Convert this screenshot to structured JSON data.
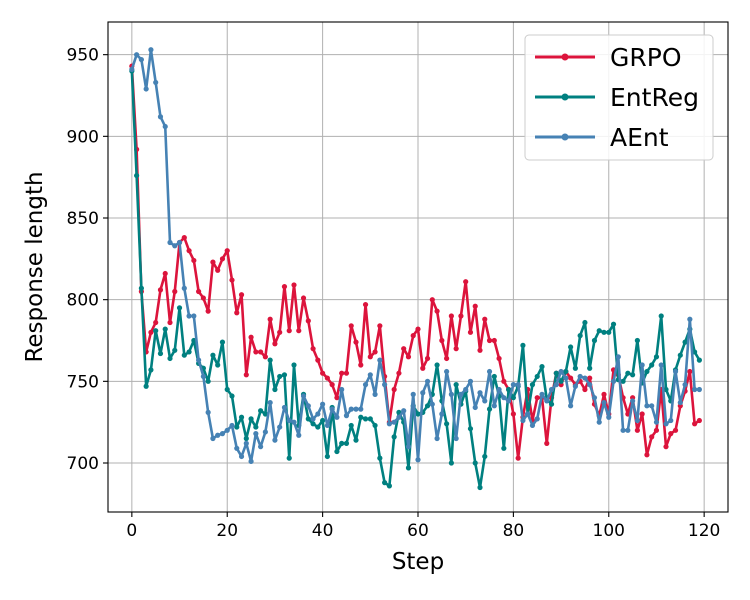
{
  "chart_data": {
    "type": "line",
    "xlabel": "Step",
    "ylabel": "Response length",
    "xlim": [
      -5,
      125
    ],
    "ylim": [
      670,
      970
    ],
    "xticks": [
      "0",
      "20",
      "40",
      "60",
      "80",
      "100",
      "120"
    ],
    "yticks": [
      "700",
      "750",
      "800",
      "850",
      "900",
      "950"
    ],
    "grid": true,
    "legend_position": "top-right",
    "x": [
      0,
      1,
      2,
      3,
      4,
      5,
      6,
      7,
      8,
      9,
      10,
      11,
      12,
      13,
      14,
      15,
      16,
      17,
      18,
      19,
      20,
      21,
      22,
      23,
      24,
      25,
      26,
      27,
      28,
      29,
      30,
      31,
      32,
      33,
      34,
      35,
      36,
      37,
      38,
      39,
      40,
      41,
      42,
      43,
      44,
      45,
      46,
      47,
      48,
      49,
      50,
      51,
      52,
      53,
      54,
      55,
      56,
      57,
      58,
      59,
      60,
      61,
      62,
      63,
      64,
      65,
      66,
      67,
      68,
      69,
      70,
      71,
      72,
      73,
      74,
      75,
      76,
      77,
      78,
      79,
      80,
      81,
      82,
      83,
      84,
      85,
      86,
      87,
      88,
      89,
      90,
      91,
      92,
      93,
      94,
      95,
      96,
      97,
      98,
      99,
      100,
      101,
      102,
      103,
      104,
      105,
      106,
      107,
      108,
      109,
      110,
      111,
      112,
      113,
      114,
      115,
      116,
      117,
      118,
      119
    ],
    "series": [
      {
        "name": "GRPO",
        "color": "#dc143c",
        "values": [
          943,
          892,
          805,
          768,
          780,
          786,
          806,
          816,
          786,
          805,
          835,
          838,
          830,
          824,
          805,
          801,
          793,
          823,
          818,
          825,
          830,
          812,
          792,
          803,
          754,
          777,
          768,
          768,
          765,
          788,
          773,
          780,
          808,
          781,
          809,
          781,
          801,
          787,
          770,
          763,
          755,
          752,
          748,
          740,
          755,
          755,
          784,
          774,
          760,
          797,
          765,
          768,
          784,
          753,
          725,
          745,
          755,
          770,
          765,
          778,
          782,
          758,
          764,
          800,
          793,
          775,
          764,
          790,
          770,
          790,
          811,
          780,
          796,
          769,
          788,
          775,
          775,
          764,
          750,
          745,
          730,
          703,
          728,
          745,
          726,
          740,
          740,
          712,
          740,
          755,
          748,
          756,
          752,
          748,
          750,
          745,
          752,
          736,
          729,
          742,
          730,
          757,
          754,
          740,
          730,
          740,
          720,
          730,
          705,
          716,
          720,
          745,
          710,
          718,
          720,
          735,
          744,
          756,
          724,
          726
        ]
      },
      {
        "name": "EntReg",
        "color": "#008080",
        "values": [
          940,
          876,
          807,
          747,
          757,
          781,
          767,
          782,
          764,
          769,
          795,
          766,
          768,
          775,
          761,
          758,
          750,
          766,
          760,
          774,
          745,
          741,
          722,
          728,
          715,
          727,
          722,
          732,
          730,
          763,
          745,
          753,
          754,
          703,
          760,
          723,
          742,
          727,
          724,
          722,
          726,
          704,
          734,
          707,
          712,
          712,
          723,
          714,
          728,
          727,
          727,
          723,
          703,
          688,
          686,
          716,
          731,
          725,
          697,
          735,
          730,
          731,
          735,
          742,
          760,
          738,
          724,
          700,
          748,
          736,
          744,
          721,
          700,
          685,
          704,
          733,
          753,
          741,
          709,
          745,
          740,
          747,
          772,
          730,
          748,
          753,
          759,
          739,
          736,
          755,
          750,
          756,
          771,
          758,
          778,
          786,
          758,
          775,
          781,
          780,
          780,
          785,
          751,
          750,
          755,
          754,
          775,
          749,
          756,
          760,
          765,
          790,
          745,
          738,
          757,
          766,
          774,
          782,
          768,
          763
        ]
      },
      {
        "name": "AEnt",
        "color": "#4682b4",
        "values": [
          941,
          950,
          947,
          929,
          953,
          933,
          912,
          906,
          835,
          833,
          835,
          807,
          790,
          790,
          763,
          753,
          731,
          715,
          717,
          718,
          720,
          723,
          709,
          704,
          712,
          701,
          718,
          710,
          719,
          737,
          714,
          722,
          734,
          726,
          725,
          717,
          741,
          735,
          727,
          730,
          736,
          723,
          733,
          728,
          745,
          729,
          733,
          733,
          733,
          748,
          754,
          742,
          763,
          748,
          724,
          725,
          728,
          732,
          710,
          742,
          702,
          743,
          750,
          736,
          715,
          730,
          756,
          742,
          715,
          742,
          745,
          750,
          734,
          743,
          738,
          756,
          735,
          745,
          740,
          738,
          748,
          748,
          726,
          730,
          723,
          727,
          742,
          738,
          745,
          748,
          756,
          752,
          735,
          747,
          753,
          752,
          748,
          740,
          725,
          737,
          728,
          750,
          765,
          720,
          720,
          738,
          726,
          760,
          735,
          735,
          725,
          760,
          724,
          726,
          756,
          737,
          748,
          788,
          745,
          745
        ]
      }
    ]
  }
}
